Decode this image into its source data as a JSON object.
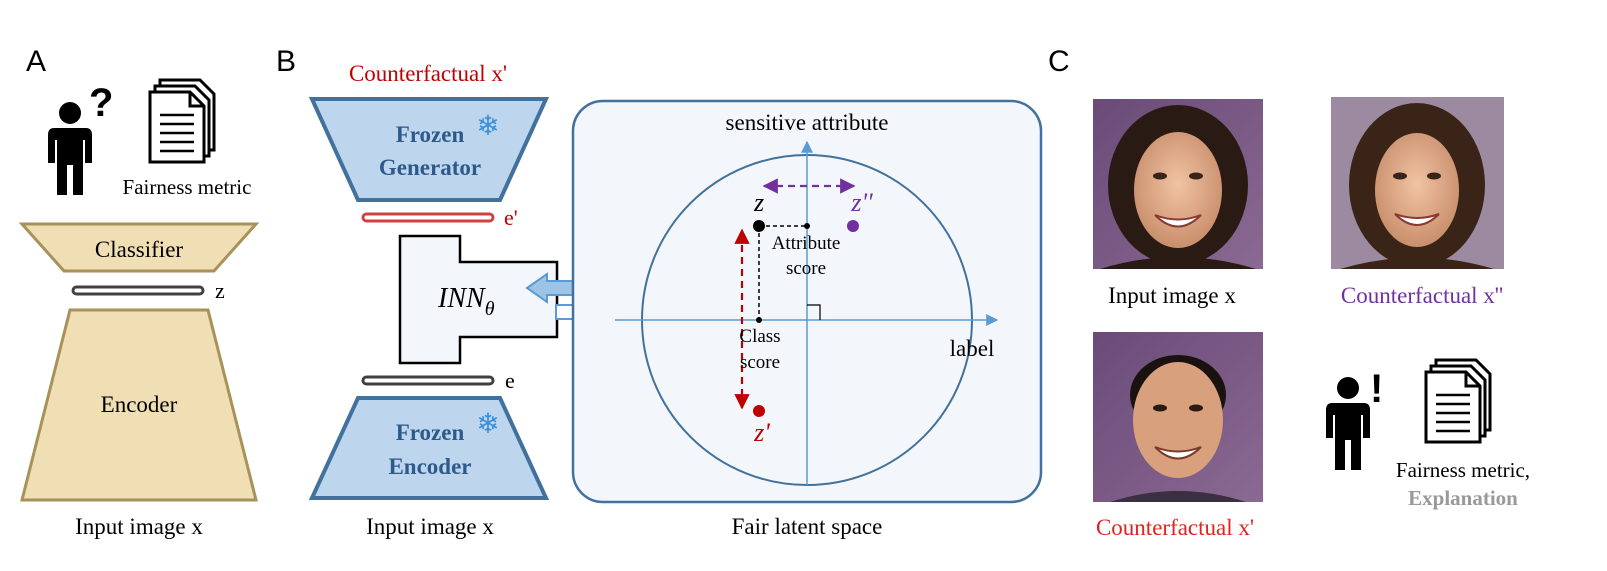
{
  "panel_a": {
    "letter": "A",
    "question_mark": "?",
    "fairness_metric": "Fairness metric",
    "classifier": "Classifier",
    "z_label": "z",
    "encoder": "Encoder",
    "input_label": "Input image x"
  },
  "panel_b": {
    "letter": "B",
    "counterfactual_label": "Counterfactual x'",
    "frozen_generator_1": "Frozen",
    "frozen_generator_2": "Generator",
    "e_prime_label": "e'",
    "inn_label": "INN",
    "inn_subscript": "θ",
    "e_label": "e",
    "frozen_encoder_1": "Frozen",
    "frozen_encoder_2": "Encoder",
    "input_label": "Input image x",
    "latent_space_label": "Fair latent space",
    "axis_y_label": "sensitive attribute",
    "axis_x_label": "label",
    "point_z": "z",
    "point_z_double_prime": "z''",
    "point_z_prime": "z'",
    "attribute_score_1": "Attribute",
    "attribute_score_2": "score",
    "class_score_1": "Class",
    "class_score_2": "score",
    "snowflake": "❄"
  },
  "panel_c": {
    "letter": "C",
    "input_caption": "Input image x",
    "cf_double_caption": "Counterfactual x''",
    "cf_caption": "Counterfactual x'",
    "exclamation": "!",
    "fairness_metric": "Fairness metric,",
    "explanation": "Explanation"
  },
  "colors": {
    "tan_fill": "#f0dfb4",
    "tan_stroke": "#a8925a",
    "blue_fill": "#bdd6ee",
    "blue_stroke": "#41719c",
    "latent_bg": "#f3f7fb",
    "red": "#c00000",
    "purple": "#7030a0",
    "counterfactual_red": "#e32020",
    "grey_text": "#999999"
  }
}
